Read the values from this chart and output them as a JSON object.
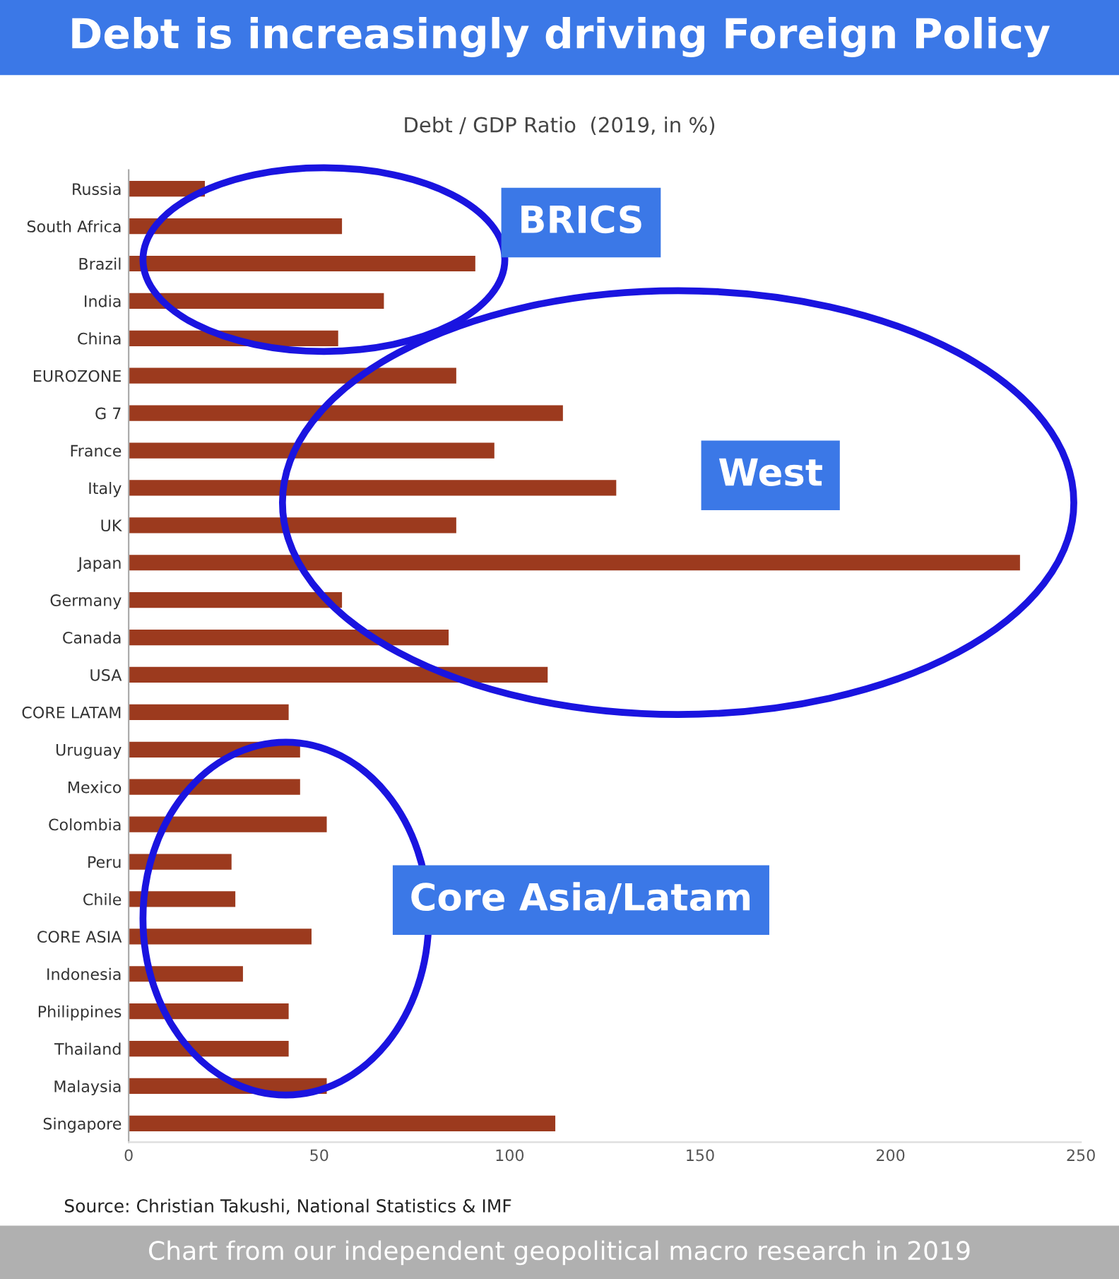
{
  "chart_data": {
    "type": "bar",
    "orientation": "horizontal",
    "title": "Debt is increasingly driving Foreign Policy",
    "subtitle": "Debt / GDP Ratio  (2019, in %)",
    "categories": [
      "Russia",
      "South Africa",
      "Brazil",
      "India",
      "China",
      "EUROZONE",
      "G 7",
      "France",
      "Italy",
      "UK",
      "Japan",
      "Germany",
      "Canada",
      "USA",
      "CORE LATAM",
      "Uruguay",
      "Mexico",
      "Colombia",
      "Peru",
      "Chile",
      "CORE ASIA",
      "Indonesia",
      "Philippines",
      "Thailand",
      "Malaysia",
      "Singapore"
    ],
    "values": [
      20,
      56,
      91,
      67,
      55,
      86,
      114,
      96,
      128,
      86,
      234,
      56,
      84,
      110,
      42,
      45,
      45,
      52,
      27,
      28,
      48,
      30,
      42,
      42,
      52,
      112
    ],
    "color": "#9c3a1e",
    "xlim": [
      0,
      250
    ],
    "xticks": [
      0,
      50,
      100,
      150,
      200,
      250
    ],
    "grid": false,
    "annotations": [
      "Source: Christian Takushi, National Statistics & IMF",
      "Chart from our independent geopolitical macro research in 2019",
      "BRICS",
      "West",
      "Core Asia/Latam"
    ]
  }
}
